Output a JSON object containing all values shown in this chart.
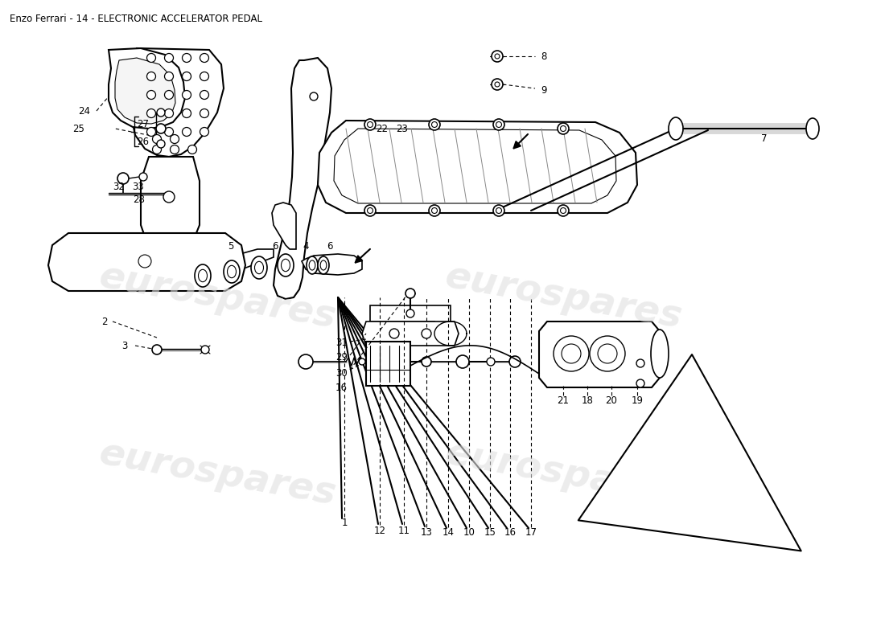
{
  "title": "Enzo Ferrari - 14 - ELECTRONIC ACCELERATOR PEDAL",
  "title_fontsize": 8.5,
  "bg_color": "#ffffff",
  "watermark_text": "eurospares",
  "watermark_color": "#e0e0e0",
  "fig_w": 11.0,
  "fig_h": 8.0,
  "dpi": 100
}
